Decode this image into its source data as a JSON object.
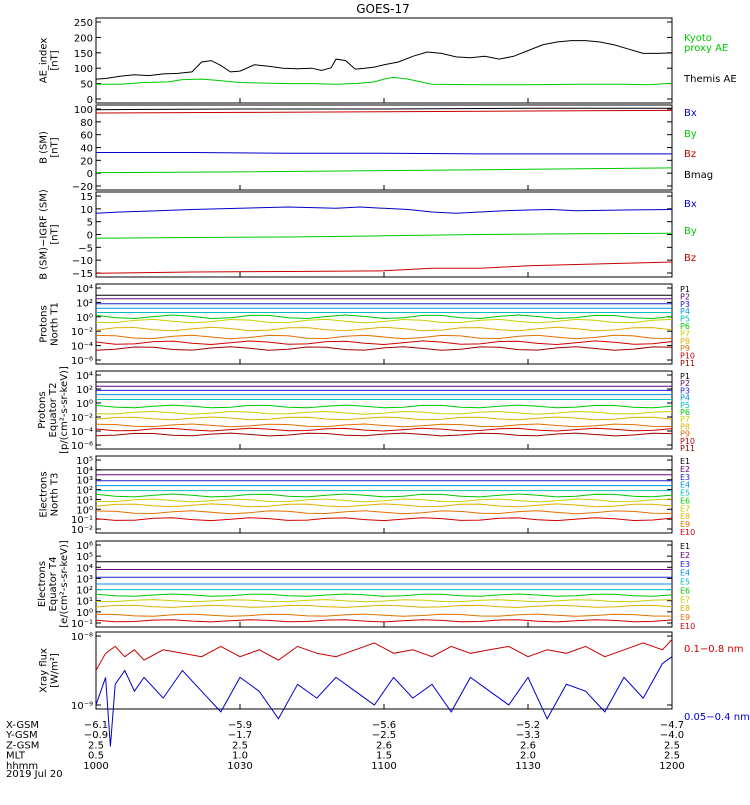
{
  "title": "GOES-17",
  "colors": {
    "black": "#000000",
    "green": "#00c800",
    "red": "#c80000",
    "blue": "#0000c8",
    "p": [
      "#000000",
      "#6a0080",
      "#2020d0",
      "#0090e0",
      "#00c0c0",
      "#00c800",
      "#c8d000",
      "#e0b000",
      "#e07000",
      "#d00000",
      "#a00000"
    ],
    "e": [
      "#000000",
      "#6a0080",
      "#2020d0",
      "#0090e0",
      "#00c0c0",
      "#00c800",
      "#c8d000",
      "#e0b000",
      "#e07000",
      "#d00000"
    ]
  },
  "panels": [
    {
      "id": "ae",
      "ylabel": [
        "AE_index",
        "[nT]"
      ],
      "ticks": [
        "250",
        "200",
        "150",
        "100",
        "50",
        "0"
      ],
      "ylim": [
        0,
        260
      ],
      "legend": [
        {
          "text": "Kyoto",
          "color": "green"
        },
        {
          "text": "proxy AE",
          "color": "green"
        },
        {
          "text": "Themis AE",
          "color": "black"
        }
      ]
    },
    {
      "id": "bsm",
      "ylabel": [
        "B (SM)",
        "[nT]"
      ],
      "ticks": [
        "100",
        "80",
        "60",
        "40",
        "20",
        "0",
        "−20"
      ],
      "ylim": [
        -25,
        102
      ],
      "legend": [
        {
          "text": "Bx",
          "color": "blue"
        },
        {
          "text": "By",
          "color": "green"
        },
        {
          "text": "Bz",
          "color": "red"
        },
        {
          "text": "Bmag",
          "color": "black"
        }
      ]
    },
    {
      "id": "digrf",
      "ylabel": [
        "B (SM)−IGRF (SM)",
        "[nT]"
      ],
      "ticks": [
        "15",
        "10",
        "5",
        "0",
        "−5",
        "−10",
        "−15"
      ],
      "ylim": [
        -17,
        17
      ],
      "legend": [
        {
          "text": "Bx",
          "color": "blue"
        },
        {
          "text": "By",
          "color": "green"
        },
        {
          "text": "Bz",
          "color": "red"
        }
      ]
    },
    {
      "id": "pt1",
      "ylabel": [
        "Protons",
        "North T1"
      ],
      "ticks": [
        "10⁴",
        "10²",
        "10⁰",
        "10⁻²",
        "10⁻⁴",
        "10⁻⁶"
      ],
      "legend": [
        "P1",
        "P2",
        "P3",
        "P4",
        "P5",
        "P6",
        "P7",
        "P8",
        "P9",
        "P10",
        "P11"
      ]
    },
    {
      "id": "pt2",
      "ylabel": [
        "Protons",
        "Equator T2",
        "[p/(cm²-s-sr-keV)]"
      ],
      "ticks": [
        "10⁴",
        "10²",
        "10⁰",
        "10⁻²",
        "10⁻⁴",
        "10⁻⁶"
      ],
      "legend": [
        "P1",
        "P2",
        "P3",
        "P4",
        "P5",
        "P6",
        "P7",
        "P8",
        "P9",
        "P10",
        "P11"
      ]
    },
    {
      "id": "et3",
      "ylabel": [
        "Electrons",
        "North T3"
      ],
      "ticks": [
        "10⁵",
        "10⁴",
        "10³",
        "10²",
        "10¹",
        "10⁰",
        "10⁻¹",
        "10⁻²"
      ],
      "legend": [
        "E1",
        "E2",
        "E3",
        "E4",
        "E5",
        "E6",
        "E7",
        "E8",
        "E9",
        "E10"
      ]
    },
    {
      "id": "et4",
      "ylabel": [
        "Electrons",
        "Equator T4",
        "[e/(cm²-s-sr-keV)]"
      ],
      "ticks": [
        "10⁶",
        "10⁵",
        "10⁴",
        "10³",
        "10²",
        "10¹",
        "10⁰",
        "10⁻¹"
      ],
      "legend": [
        "E1",
        "E2",
        "E3",
        "E4",
        "E5",
        "E6",
        "E7",
        "E8",
        "E9",
        "E10"
      ]
    },
    {
      "id": "xray",
      "ylabel": [
        "Xray flux",
        "[W/m²]"
      ],
      "ticks": [
        "10⁻⁸",
        "10⁻⁹"
      ],
      "legend": [
        {
          "text": "0.1−0.8 nm",
          "color": "red"
        },
        {
          "text": "0.05−0.4 nm",
          "color": "blue"
        }
      ]
    }
  ],
  "axis": {
    "rows": [
      {
        "label": "X-GSM",
        "values": [
          "−6.1",
          "−5.9",
          "−5.6",
          "−5.2",
          "−4.7"
        ]
      },
      {
        "label": "Y-GSM",
        "values": [
          "−0.9",
          "−1.7",
          "−2.5",
          "−3.3",
          "−4.0"
        ]
      },
      {
        "label": "Z-GSM",
        "values": [
          "2.5",
          "2.5",
          "2.6",
          "2.6",
          "2.5"
        ]
      },
      {
        "label": "MLT",
        "values": [
          "0.5",
          "1.0",
          "1.5",
          "2.0",
          "2.5"
        ]
      },
      {
        "label": "hhmm",
        "values": [
          "1000",
          "1030",
          "1100",
          "1130",
          "1200"
        ]
      }
    ],
    "date": "2019 Jul 20"
  },
  "chart_data": {
    "type": "line",
    "time_range": [
      "2019-07-20 10:00",
      "2019-07-20 12:00"
    ],
    "ae": {
      "series": [
        {
          "name": "Themis AE",
          "x": [
            0,
            2,
            5,
            8,
            11,
            14,
            17,
            20,
            22,
            24,
            26,
            28,
            30,
            33,
            36,
            39,
            42,
            45,
            47,
            49,
            50,
            52,
            54,
            56,
            58,
            60,
            63,
            66,
            69,
            72,
            75,
            78,
            81,
            84,
            87,
            90,
            93,
            96,
            99,
            102,
            105,
            108,
            111,
            114,
            117,
            120
          ],
          "values": [
            70,
            72,
            80,
            85,
            82,
            88,
            90,
            95,
            130,
            135,
            118,
            95,
            98,
            120,
            115,
            108,
            106,
            108,
            100,
            110,
            140,
            135,
            105,
            108,
            112,
            120,
            130,
            150,
            165,
            160,
            148,
            145,
            150,
            140,
            150,
            170,
            190,
            200,
            205,
            205,
            200,
            190,
            175,
            160,
            160,
            162
          ]
        },
        {
          "name": "Kyoto proxy AE",
          "x": [
            0,
            5,
            10,
            15,
            18,
            22,
            25,
            30,
            35,
            40,
            45,
            50,
            55,
            58,
            60,
            62,
            65,
            70,
            80,
            90,
            100,
            110,
            115,
            120
          ],
          "values": [
            52,
            52,
            58,
            60,
            68,
            70,
            66,
            58,
            56,
            54,
            54,
            52,
            55,
            60,
            70,
            76,
            70,
            52,
            50,
            50,
            52,
            52,
            50,
            55
          ]
        }
      ]
    },
    "b_sm": {
      "series": [
        {
          "name": "Bmag",
          "x": [
            0,
            30,
            60,
            90,
            120
          ],
          "values": [
            95,
            96,
            96,
            97,
            97
          ]
        },
        {
          "name": "Bz",
          "x": [
            0,
            30,
            60,
            90,
            120
          ],
          "values": [
            90,
            91,
            92,
            93,
            94
          ]
        },
        {
          "name": "Bx",
          "x": [
            0,
            20,
            40,
            60,
            80,
            100,
            120
          ],
          "values": [
            31,
            31,
            30,
            30,
            29,
            29,
            29
          ]
        },
        {
          "name": "By",
          "x": [
            0,
            30,
            60,
            90,
            120
          ],
          "values": [
            1,
            2,
            4,
            6,
            8
          ]
        }
      ]
    },
    "b_minus_igrf": {
      "series": [
        {
          "name": "Bx",
          "x": [
            0,
            5,
            10,
            20,
            30,
            40,
            50,
            55,
            60,
            65,
            70,
            75,
            80,
            85,
            90,
            95,
            100,
            110,
            120
          ],
          "values": [
            8.5,
            9,
            9.3,
            10,
            10.5,
            11,
            10.5,
            11,
            10.5,
            10,
            9,
            8.5,
            9,
            9.5,
            9.8,
            10,
            9.5,
            9.8,
            10
          ]
        },
        {
          "name": "By",
          "x": [
            0,
            20,
            40,
            60,
            80,
            100,
            120
          ],
          "values": [
            -1.5,
            -1.2,
            -1,
            -0.5,
            0,
            0.3,
            0.5
          ]
        },
        {
          "name": "Bz",
          "x": [
            0,
            20,
            40,
            60,
            70,
            80,
            90,
            100,
            110,
            120
          ],
          "values": [
            -15.5,
            -15,
            -14.8,
            -14.5,
            -13.5,
            -13.5,
            -12.5,
            -12,
            -11.5,
            -11
          ]
        }
      ]
    },
    "protons_t1_log10": [
      3,
      2.5,
      1.8,
      1.2,
      0.6,
      0,
      -0.6,
      -1.7,
      -2.8,
      -3.6,
      -4.4
    ],
    "protons_t2_log10": [
      3,
      2.4,
      1.8,
      1.2,
      0.5,
      -0.5,
      -1.4,
      -2.2,
      -3.2,
      -3.8,
      -4.5
    ],
    "electrons_t3_log10": [
      4.0,
      3.5,
      2.9,
      2.4,
      1.9,
      1.4,
      0.9,
      0.4,
      -0.3,
      -1.0
    ],
    "electrons_t4_log10": [
      4.5,
      3.8,
      3.1,
      2.5,
      2.0,
      1.5,
      1.0,
      0.5,
      -0.3,
      -0.8
    ],
    "xray": {
      "series": [
        {
          "name": "0.1−0.8 nm",
          "x": [
            0,
            2,
            4,
            6,
            8,
            10,
            14,
            18,
            22,
            26,
            30,
            34,
            38,
            42,
            46,
            50,
            54,
            58,
            62,
            66,
            70,
            74,
            78,
            82,
            86,
            90,
            94,
            98,
            102,
            106,
            110,
            114,
            118,
            120
          ],
          "log10": [
            -8.5,
            -8.25,
            -8.15,
            -8.3,
            -8.2,
            -8.35,
            -8.2,
            -8.25,
            -8.3,
            -8.15,
            -8.3,
            -8.2,
            -8.35,
            -8.15,
            -8.25,
            -8.3,
            -8.2,
            -8.1,
            -8.25,
            -8.2,
            -8.3,
            -8.15,
            -8.25,
            -8.2,
            -8.15,
            -8.3,
            -8.2,
            -8.25,
            -8.15,
            -8.3,
            -8.2,
            -8.1,
            -8.2,
            -8.05
          ]
        },
        {
          "name": "0.05−0.4 nm",
          "x": [
            0,
            2,
            3,
            4,
            6,
            8,
            10,
            14,
            18,
            22,
            26,
            30,
            34,
            38,
            42,
            46,
            50,
            54,
            58,
            62,
            66,
            70,
            74,
            78,
            82,
            86,
            90,
            94,
            98,
            102,
            106,
            110,
            114,
            118,
            120
          ],
          "log10": [
            -9.0,
            -8.6,
            -9.6,
            -8.7,
            -8.5,
            -8.8,
            -8.6,
            -8.9,
            -8.5,
            -8.8,
            -9.1,
            -8.6,
            -8.8,
            -9.2,
            -8.7,
            -8.9,
            -8.6,
            -8.8,
            -9.0,
            -8.6,
            -8.9,
            -8.7,
            -9.1,
            -8.6,
            -8.8,
            -9.0,
            -8.6,
            -9.2,
            -8.7,
            -8.8,
            -9.1,
            -8.6,
            -8.9,
            -8.4,
            -8.3
          ]
        }
      ]
    }
  }
}
